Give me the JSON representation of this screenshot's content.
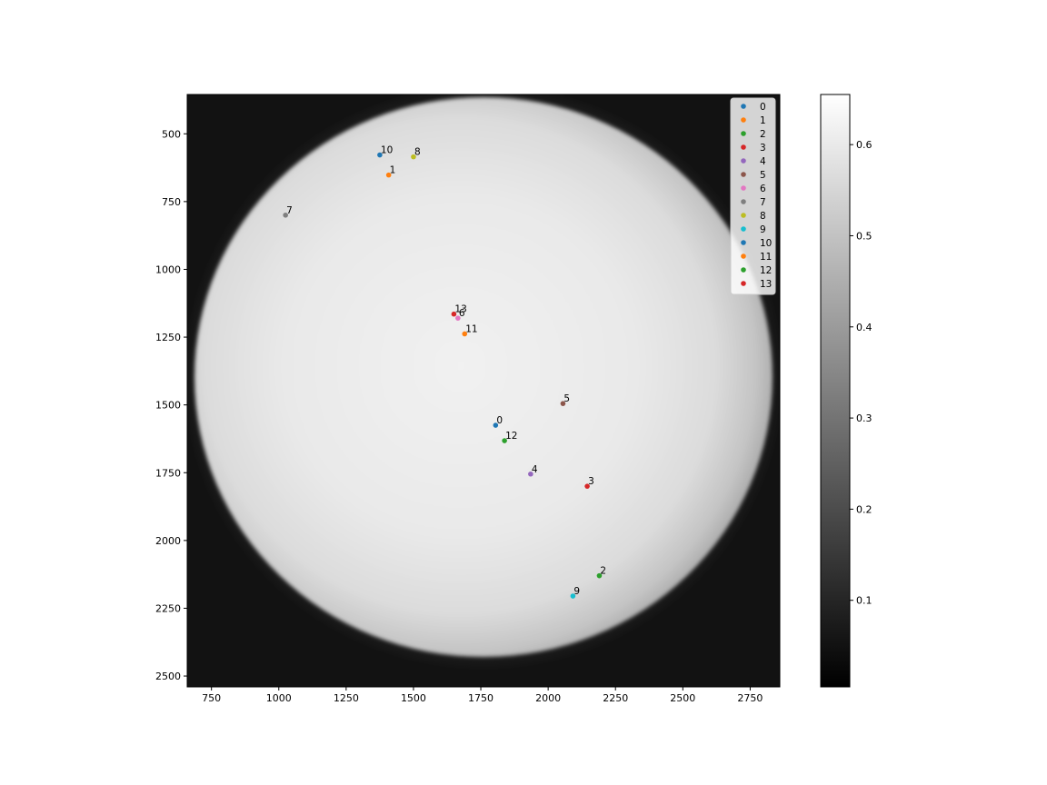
{
  "chart_data": {
    "type": "scatter",
    "background": "grayscale solar disk image",
    "xlim": [
      660,
      2860
    ],
    "ylim": [
      2540,
      355
    ],
    "x_ticks": [
      750,
      1000,
      1250,
      1500,
      1750,
      2000,
      2250,
      2500,
      2750
    ],
    "y_ticks": [
      500,
      750,
      1000,
      1250,
      1500,
      1750,
      2000,
      2250,
      2500
    ],
    "y_inverted": true,
    "grid": false,
    "legend_placement": "top-right",
    "colorbar": {
      "cmap": "gray",
      "range": [
        0.005,
        0.655
      ],
      "ticks": [
        0.1,
        0.2,
        0.3,
        0.4,
        0.5,
        0.6
      ],
      "tick_labels": [
        "0.1",
        "0.2",
        "0.3",
        "0.4",
        "0.5",
        "0.6"
      ]
    },
    "series": [
      {
        "name": "0",
        "color": "#1f77b4",
        "x": 1805,
        "y": 1575
      },
      {
        "name": "1",
        "color": "#ff7f0e",
        "x": 1408,
        "y": 652
      },
      {
        "name": "2",
        "color": "#2ca02c",
        "x": 2190,
        "y": 2130
      },
      {
        "name": "3",
        "color": "#d62728",
        "x": 2145,
        "y": 1800
      },
      {
        "name": "4",
        "color": "#9467bd",
        "x": 1935,
        "y": 1755
      },
      {
        "name": "5",
        "color": "#8c564b",
        "x": 2055,
        "y": 1495
      },
      {
        "name": "6",
        "color": "#e377c2",
        "x": 1665,
        "y": 1180
      },
      {
        "name": "7",
        "color": "#7f7f7f",
        "x": 1025,
        "y": 800
      },
      {
        "name": "8",
        "color": "#bcbd22",
        "x": 1500,
        "y": 585
      },
      {
        "name": "9",
        "color": "#17becf",
        "x": 2092,
        "y": 2205
      },
      {
        "name": "10",
        "color": "#1f77b4",
        "x": 1375,
        "y": 578
      },
      {
        "name": "11",
        "color": "#ff7f0e",
        "x": 1690,
        "y": 1238
      },
      {
        "name": "12",
        "color": "#2ca02c",
        "x": 1838,
        "y": 1632
      },
      {
        "name": "13",
        "color": "#d62728",
        "x": 1650,
        "y": 1165
      }
    ]
  }
}
